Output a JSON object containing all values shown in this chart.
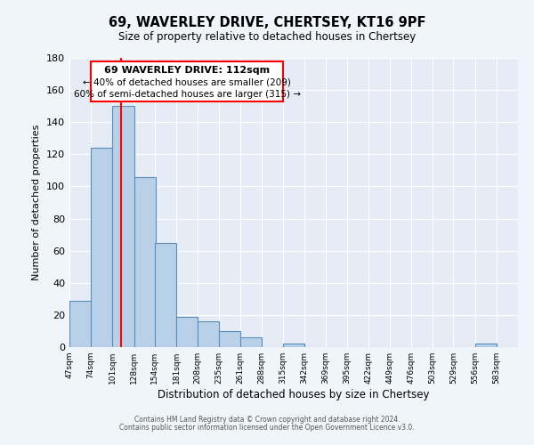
{
  "title": "69, WAVERLEY DRIVE, CHERTSEY, KT16 9PF",
  "subtitle": "Size of property relative to detached houses in Chertsey",
  "xlabel": "Distribution of detached houses by size in Chertsey",
  "ylabel": "Number of detached properties",
  "bar_edges": [
    47,
    74,
    101,
    128,
    154,
    181,
    208,
    235,
    261,
    288,
    315,
    342,
    369,
    395,
    422,
    449,
    476,
    503,
    529,
    556,
    583
  ],
  "bar_heights": [
    29,
    124,
    150,
    106,
    65,
    19,
    16,
    10,
    6,
    0,
    2,
    0,
    0,
    0,
    0,
    0,
    0,
    0,
    0,
    2,
    0
  ],
  "bar_color": "#b8d0e8",
  "bar_edgecolor": "#5b8db8",
  "vline_x": 112,
  "vline_color": "red",
  "annotation_title": "69 WAVERLEY DRIVE: 112sqm",
  "annotation_line1": "← 40% of detached houses are smaller (209)",
  "annotation_line2": "60% of semi-detached houses are larger (315) →",
  "ylim": [
    0,
    180
  ],
  "yticks": [
    0,
    20,
    40,
    60,
    80,
    100,
    120,
    140,
    160,
    180
  ],
  "tick_labels": [
    "47sqm",
    "74sqm",
    "101sqm",
    "128sqm",
    "154sqm",
    "181sqm",
    "208sqm",
    "235sqm",
    "261sqm",
    "288sqm",
    "315sqm",
    "342sqm",
    "369sqm",
    "395sqm",
    "422sqm",
    "449sqm",
    "476sqm",
    "503sqm",
    "529sqm",
    "556sqm",
    "583sqm"
  ],
  "footer1": "Contains HM Land Registry data © Crown copyright and database right 2024.",
  "footer2": "Contains public sector information licensed under the Open Government Licence v3.0.",
  "bg_color": "#f0f4fb",
  "plot_bg_color": "#e6ecf6"
}
